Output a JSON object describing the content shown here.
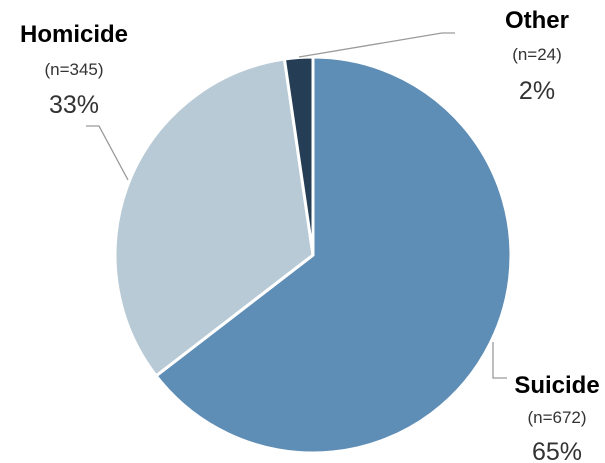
{
  "chart_data": {
    "type": "pie",
    "slices": [
      {
        "label": "Suicide",
        "n_label": "(n=672)",
        "percent_label": "65%",
        "value": 672,
        "color": "#5e8db5"
      },
      {
        "label": "Homicide",
        "n_label": "(n=345)",
        "percent_label": "33%",
        "value": 345,
        "color": "#b8cad5"
      },
      {
        "label": "Other",
        "n_label": "(n=24)",
        "percent_label": "2%",
        "value": 24,
        "color": "#253e55"
      }
    ],
    "start": "12 o'clock",
    "direction": "clockwise",
    "slice_border_color": "#ffffff",
    "leader_line_color": "#9a9a9a",
    "legend": "none"
  }
}
